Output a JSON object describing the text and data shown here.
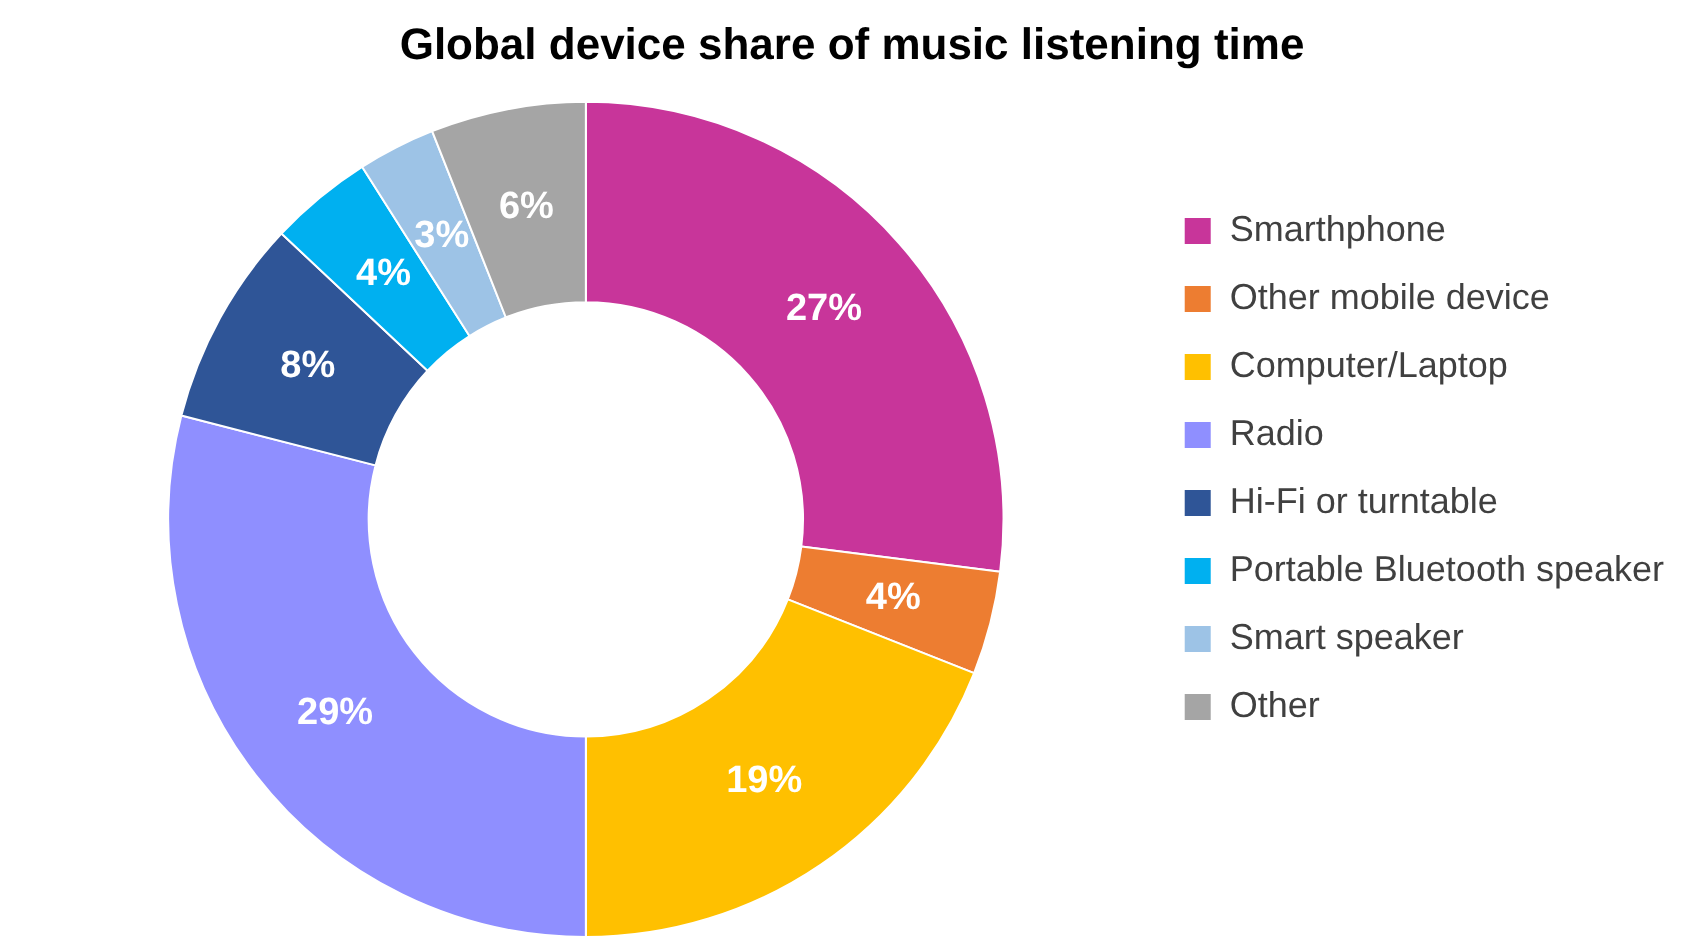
{
  "chart_data": {
    "type": "donut",
    "title": "Global device share of music listening time",
    "categories": [
      "Smarthphone",
      "Other mobile device",
      "Computer/Laptop",
      "Radio",
      "Hi-Fi or turntable",
      "Portable Bluetooth speaker",
      "Smart speaker",
      "Other"
    ],
    "values": [
      27,
      4,
      19,
      29,
      8,
      4,
      3,
      6
    ],
    "colors": [
      "#c8359a",
      "#ed7d31",
      "#ffc000",
      "#8f8fff",
      "#2f5597",
      "#00b0f0",
      "#9dc3e6",
      "#a5a5a5"
    ],
    "value_labels": [
      "27%",
      "4%",
      "19%",
      "29%",
      "8%",
      "4%",
      "3%",
      "6%"
    ],
    "legend": "right"
  }
}
